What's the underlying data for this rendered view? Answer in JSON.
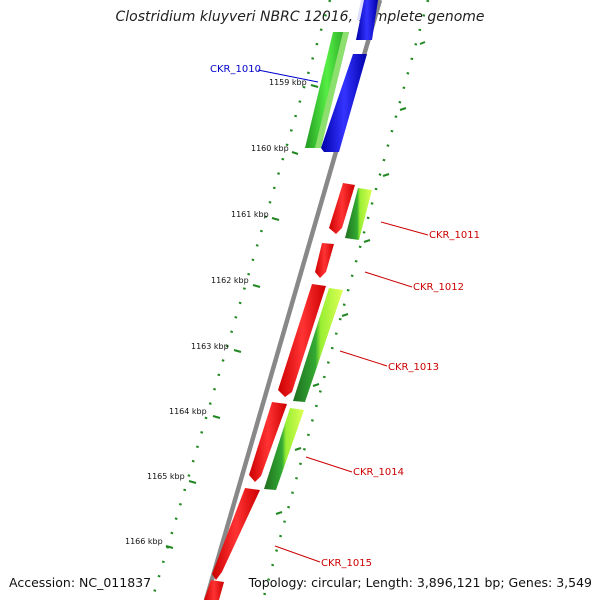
{
  "header": {
    "title": "Clostridium kluyveri NBRC 12016, complete genome"
  },
  "footer": {
    "accession": "Accession: NC_011837",
    "summary": "Topology: circular; Length: 3,896,121 bp; Genes: 3,549"
  },
  "colors": {
    "backbone": "#888888",
    "plus_strand": "#0000ff",
    "minus_strand": "#ff0000",
    "gc_plus": "#33cc33",
    "gc_light": "#ccff33",
    "gc_dark": "#227722",
    "tick": "#228822",
    "label_blue": "#0000cc",
    "label_red": "#cc0000"
  },
  "scale": {
    "ticks": [
      {
        "label": "1159 kbp"
      },
      {
        "label": "1160 kbp"
      },
      {
        "label": "1161 kbp"
      },
      {
        "label": "1162 kbp"
      },
      {
        "label": "1163 kbp"
      },
      {
        "label": "1164 kbp"
      },
      {
        "label": "1165 kbp"
      },
      {
        "label": "1166 kbp"
      }
    ]
  },
  "genes": [
    {
      "label": "CKR_1010",
      "color": "blue"
    },
    {
      "label": "CKR_1011",
      "color": "red"
    },
    {
      "label": "CKR_1012",
      "color": "red"
    },
    {
      "label": "CKR_1013",
      "color": "red"
    },
    {
      "label": "CKR_1014",
      "color": "red"
    },
    {
      "label": "CKR_1015",
      "color": "red"
    }
  ]
}
